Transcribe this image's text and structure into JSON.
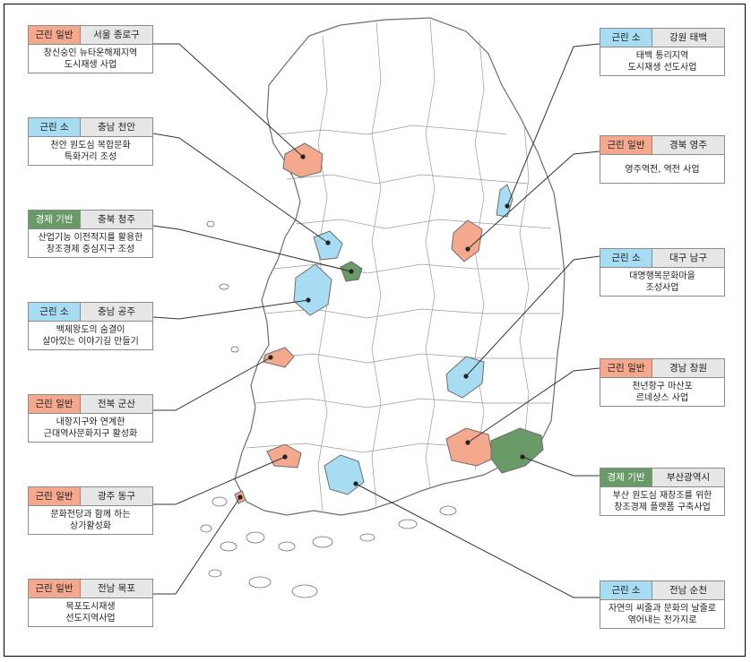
{
  "colors": {
    "urban_general": "#f4a98f",
    "urban_small": "#a7dcf2",
    "economic_base": "#6a9a68",
    "region_header": "#e6e6e6",
    "map_stroke": "#6d6d6d"
  },
  "cards": [
    {
      "type": "근린 일반",
      "region": "서울 종로구",
      "line1": "창신숭인 뉴타운해제지역",
      "line2": "도시재생 사업"
    },
    {
      "type": "근린 소",
      "region": "충남 천안",
      "line1": "천안 원도심 복합문화",
      "line2": "특화거리 조성"
    },
    {
      "type": "경제 기반",
      "region": "충북 청주",
      "line1": "산업기능 이전적지를 활용한",
      "line2": "창조경제 중심지구 조성"
    },
    {
      "type": "근린 소",
      "region": "충남 공주",
      "line1": "백제왕도의 숨결이",
      "line2": "살아있는 이야기길 만들기"
    },
    {
      "type": "근린 일반",
      "region": "전북 군산",
      "line1": "내항지구와 연계한",
      "line2": "근대역사문화지구 활성화"
    },
    {
      "type": "근린 일반",
      "region": "광주 동구",
      "line1": "문화전당과 함께 하는",
      "line2": "상가활성화"
    },
    {
      "type": "근린 일반",
      "region": "전남 목포",
      "line1": "목포도시재생",
      "line2": "선도지역사업"
    },
    {
      "type": "근린 소",
      "region": "강원 태백",
      "line1": "태백 통리지역",
      "line2": "도시재생 선도사업"
    },
    {
      "type": "근린 일반",
      "region": "경북 영주",
      "line1": "영주역전, 역전 사업",
      "line2": ""
    },
    {
      "type": "근린 소",
      "region": "대구 남구",
      "line1": "대명행복문화마을",
      "line2": "조성사업"
    },
    {
      "type": "근린 일반",
      "region": "경남 창원",
      "line1": "천년항구 마산포",
      "line2": "르네상스 사업"
    },
    {
      "type": "경제 기반",
      "region": "부산광역시",
      "line1": "부산 원도심 재창조를 위한",
      "line2": "창조경제 플랫폼 구축사업"
    },
    {
      "type": "근린 소",
      "region": "전남 순천",
      "line1": "자연의 씨줄과 문화의 날줄로",
      "line2": "엮어내는 천가지로"
    }
  ]
}
